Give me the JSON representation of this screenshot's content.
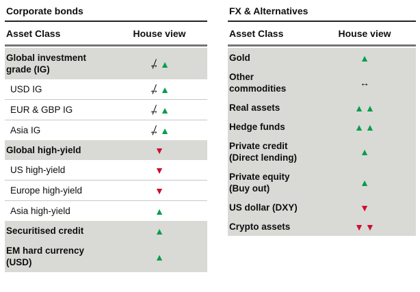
{
  "colors": {
    "up": "#009E49",
    "down": "#CE0E2D",
    "neutral": "#111111",
    "shaded_row_bg": "#D9D9D6"
  },
  "icons": {
    "up": "up-triangle (positive house view)",
    "down": "down-triangle (negative house view)",
    "neutral": "left-right-arrow (neutral house view)",
    "neutral_struck": "struck left-right-arrow (previous neutral view crossed out)"
  },
  "tables": [
    {
      "title": "Corporate bonds",
      "columns": {
        "asset_class": "Asset Class",
        "house_view": "House view"
      },
      "rows": [
        {
          "label": "Global investment\ngrade (IG)",
          "emphasis": true,
          "shaded": true,
          "indent": false,
          "view": [
            "neutral_struck",
            "up"
          ]
        },
        {
          "label": "USD IG",
          "emphasis": false,
          "shaded": false,
          "indent": true,
          "view": [
            "neutral_struck",
            "up"
          ]
        },
        {
          "label": "EUR & GBP IG",
          "emphasis": false,
          "shaded": false,
          "indent": true,
          "view": [
            "neutral_struck",
            "up"
          ]
        },
        {
          "label": "Asia IG",
          "emphasis": false,
          "shaded": false,
          "indent": true,
          "view": [
            "neutral_struck",
            "up"
          ]
        },
        {
          "label": "Global high-yield",
          "emphasis": true,
          "shaded": true,
          "indent": false,
          "view": [
            "down"
          ]
        },
        {
          "label": "US high-yield",
          "emphasis": false,
          "shaded": false,
          "indent": true,
          "view": [
            "down"
          ]
        },
        {
          "label": "Europe high-yield",
          "emphasis": false,
          "shaded": false,
          "indent": true,
          "view": [
            "down"
          ]
        },
        {
          "label": "Asia high-yield",
          "emphasis": false,
          "shaded": false,
          "indent": true,
          "view": [
            "up"
          ]
        },
        {
          "label": "Securitised credit",
          "emphasis": true,
          "shaded": true,
          "indent": false,
          "view": [
            "up"
          ]
        },
        {
          "label": "EM hard currency\n(USD)",
          "emphasis": true,
          "shaded": true,
          "indent": false,
          "view": [
            "up"
          ]
        }
      ]
    },
    {
      "title": "FX & Alternatives",
      "columns": {
        "asset_class": "Asset Class",
        "house_view": "House view"
      },
      "rows": [
        {
          "label": "Gold",
          "emphasis": true,
          "shaded": true,
          "indent": false,
          "view": [
            "up"
          ]
        },
        {
          "label": "Other\ncommodities",
          "emphasis": true,
          "shaded": true,
          "indent": false,
          "view": [
            "neutral"
          ]
        },
        {
          "label": "Real assets",
          "emphasis": true,
          "shaded": true,
          "indent": false,
          "view": [
            "up",
            "up"
          ]
        },
        {
          "label": "Hedge funds",
          "emphasis": true,
          "shaded": true,
          "indent": false,
          "view": [
            "up",
            "up"
          ]
        },
        {
          "label": "Private credit\n(Direct lending)",
          "emphasis": true,
          "shaded": true,
          "indent": false,
          "view": [
            "up"
          ]
        },
        {
          "label": "Private equity\n(Buy out)",
          "emphasis": true,
          "shaded": true,
          "indent": false,
          "view": [
            "up"
          ]
        },
        {
          "label": "US dollar (DXY)",
          "emphasis": true,
          "shaded": true,
          "indent": false,
          "view": [
            "down"
          ]
        },
        {
          "label": "Crypto assets",
          "emphasis": true,
          "shaded": true,
          "indent": false,
          "view": [
            "down",
            "down"
          ]
        }
      ]
    }
  ]
}
